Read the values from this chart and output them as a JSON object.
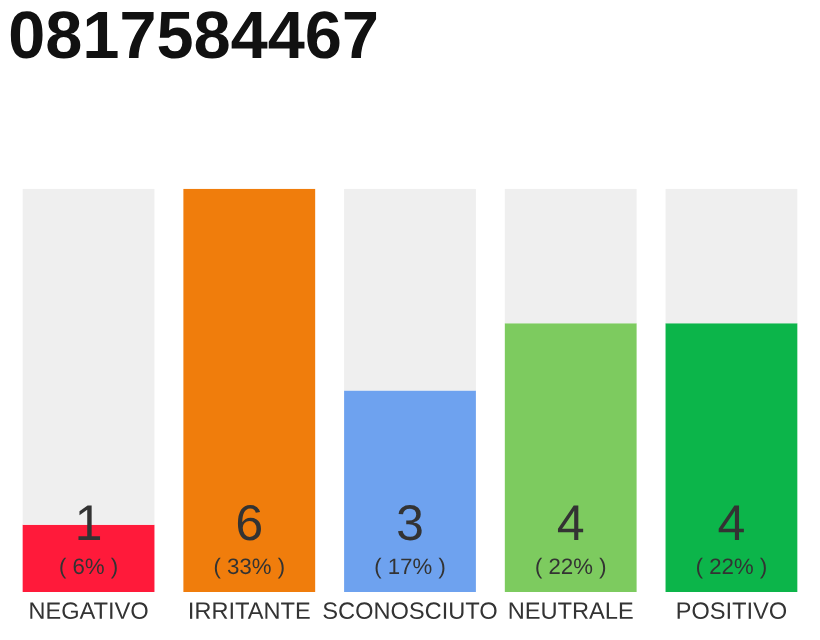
{
  "chart_data": {
    "type": "bar",
    "title": "0817584467",
    "stacked": true,
    "categories": [
      "NEGATIVO",
      "IRRITANTE",
      "SCONOSCIUTO",
      "NEUTRALE",
      "POSITIVO"
    ],
    "series": [
      {
        "colors": [
          "#ff1a3a",
          "#f07d0c",
          "#6ea2ef",
          "#7dcb5f",
          "#0cb54a"
        ],
        "values": [
          1,
          6,
          3,
          4,
          4
        ],
        "value_labels": [
          "1",
          "6",
          "3",
          "4",
          "4"
        ]
      },
      {
        "color": "#efefef",
        "values": [
          5,
          0,
          3,
          2,
          2
        ]
      }
    ],
    "annotations": [
      "( 6% )",
      "( 33% )",
      "( 17% )",
      "( 22% )",
      "( 22% )"
    ],
    "grid": false,
    "legend": false
  }
}
